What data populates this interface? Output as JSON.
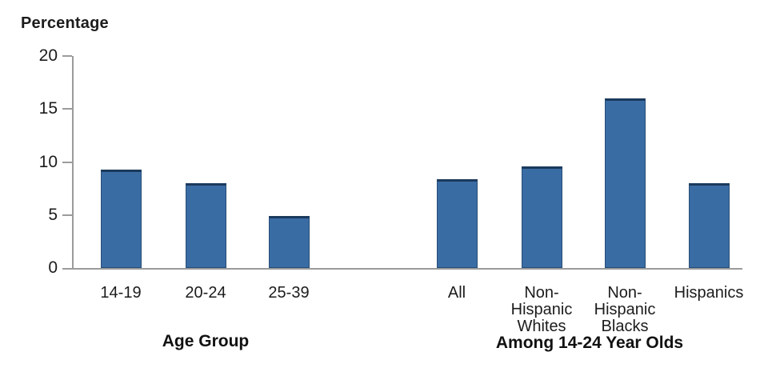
{
  "chart_data": {
    "type": "bar",
    "title": "",
    "ylabel": "Percentage",
    "xlabel": "",
    "ylim": [
      0,
      20
    ],
    "yticks": [
      0,
      5,
      10,
      15,
      20
    ],
    "grid": false,
    "legend": "none",
    "bar_color": "#3a6ca4",
    "bar_top_edge_color": "#1b3a5c",
    "axis_color": "#9b9b9b",
    "groups": [
      {
        "title": "Age Group",
        "categories": [
          "14-19",
          "20-24",
          "25-39"
        ],
        "values": [
          9.3,
          8.0,
          4.9
        ]
      },
      {
        "title": "Among 14-24 Year Olds",
        "categories": [
          "All",
          "Non-\nHispanic\nWhites",
          "Non-\nHispanic\nBlacks",
          "Hispanics"
        ],
        "values": [
          8.4,
          9.6,
          16.0,
          8.0
        ]
      }
    ]
  }
}
